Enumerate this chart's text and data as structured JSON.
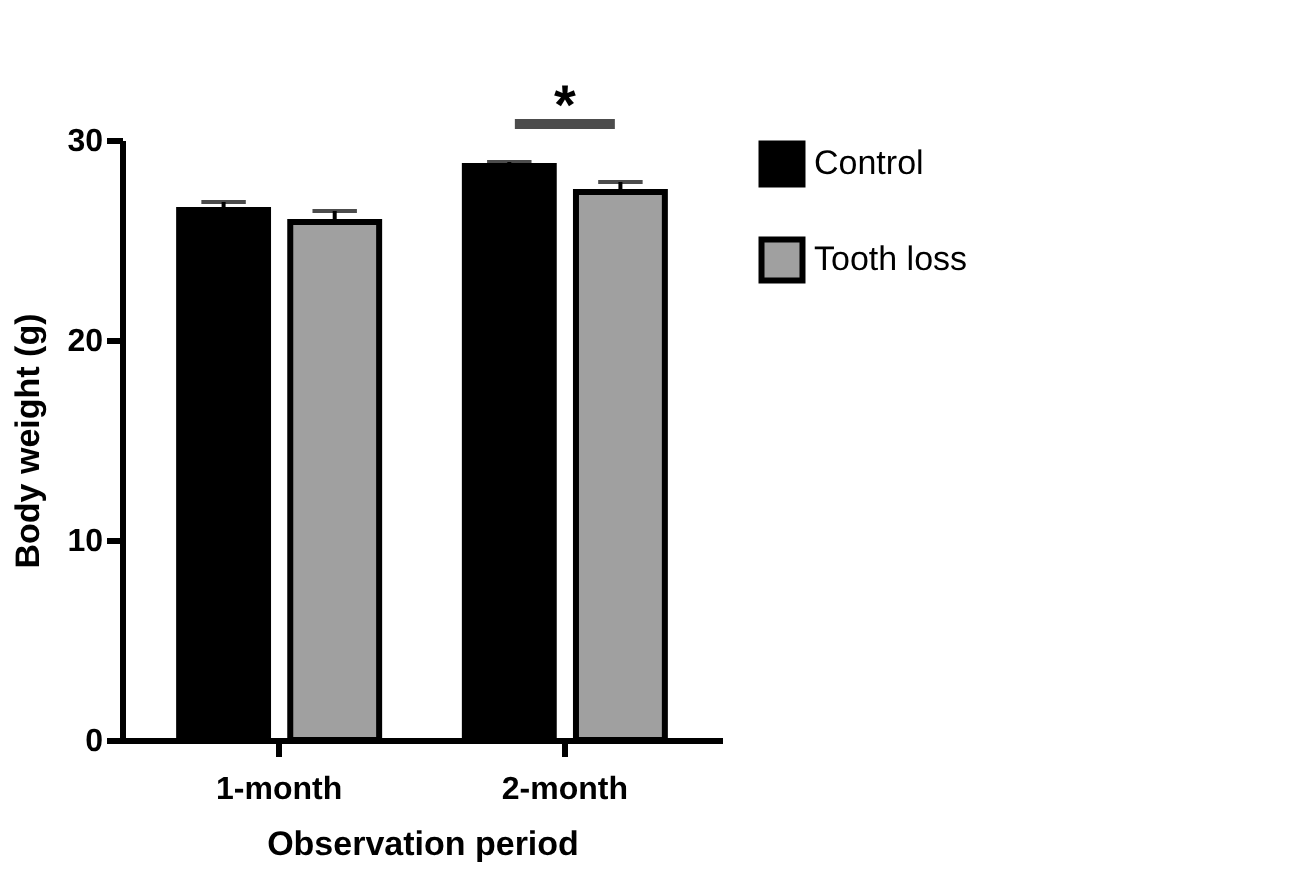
{
  "chart_data": {
    "type": "bar",
    "xlabel": "Observation period",
    "ylabel": "Body weight (g)",
    "categories": [
      "1-month",
      "2-month"
    ],
    "series": [
      {
        "name": "Control",
        "color": "#000000",
        "values": [
          26.5,
          28.7
        ],
        "errors": [
          [
            26.5,
            26.9
          ],
          [
            28.7,
            28.9
          ]
        ]
      },
      {
        "name": "Tooth loss",
        "color": "#a0a0a0",
        "values": [
          25.9,
          27.4
        ],
        "errors": [
          [
            25.9,
            26.45
          ],
          [
            27.4,
            27.9
          ]
        ]
      }
    ],
    "ylim": [
      0,
      30
    ],
    "yticks": [
      0,
      10,
      20,
      30
    ],
    "grid": false,
    "legend": "right",
    "annotations": [
      "*"
    ]
  }
}
